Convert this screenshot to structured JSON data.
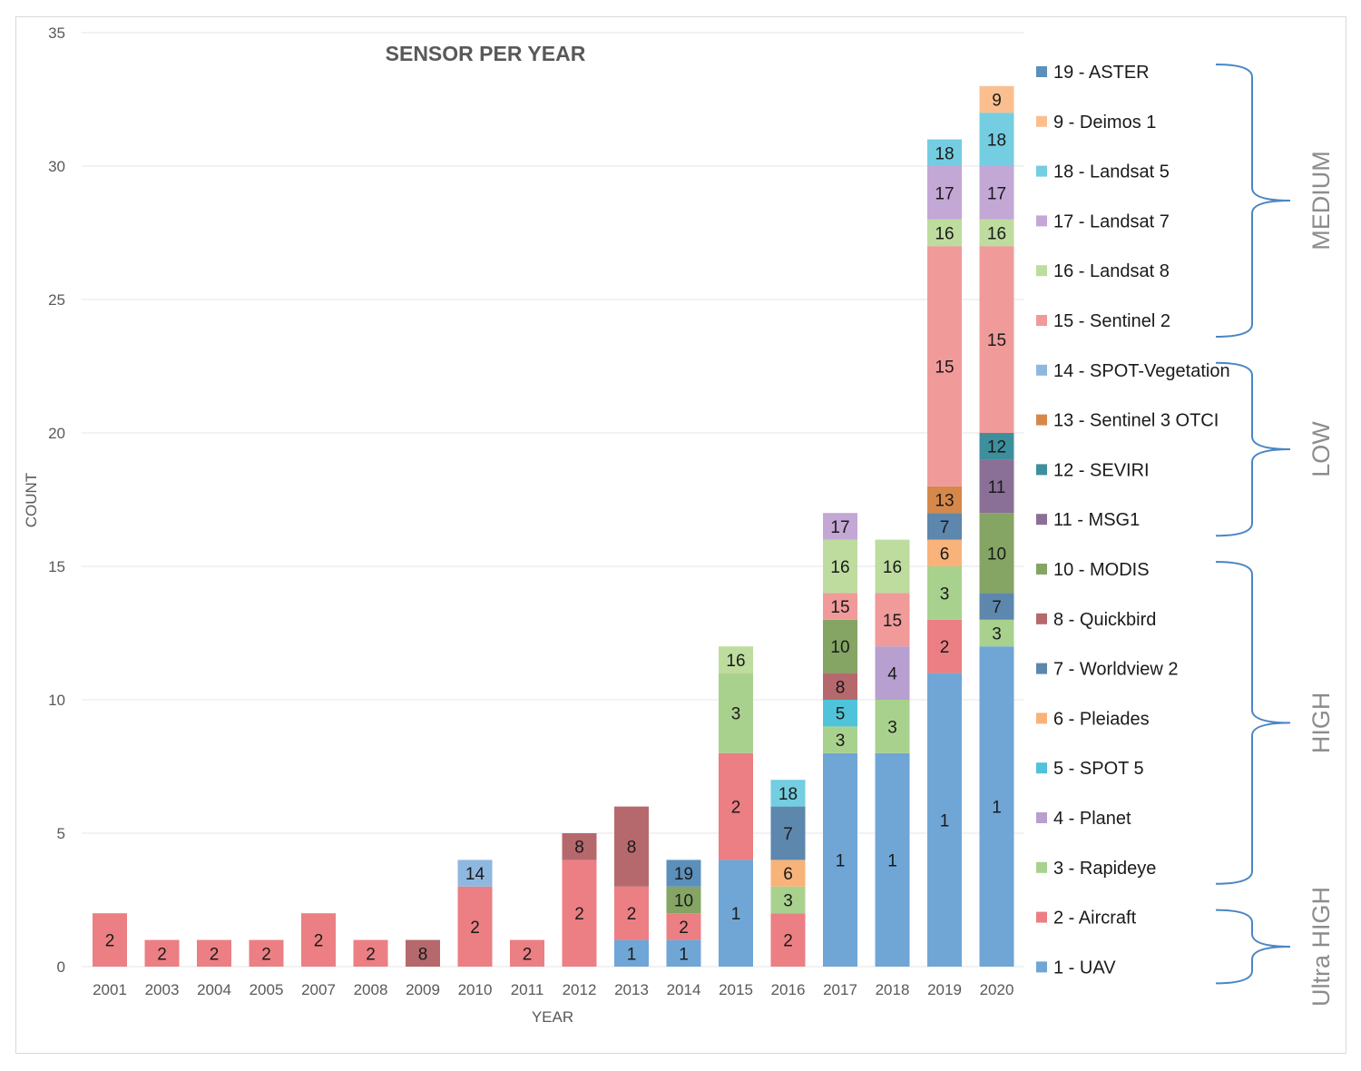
{
  "chart_data": {
    "type": "bar",
    "stacked": true,
    "title": "SENSOR PER YEAR",
    "xlabel": "YEAR",
    "ylabel": "COUNT",
    "ylim": [
      0,
      35
    ],
    "yticks": [
      0,
      5,
      10,
      15,
      20,
      25,
      30,
      35
    ],
    "grid": true,
    "legend_position": "right",
    "categories": [
      "2001",
      "2003",
      "2004",
      "2005",
      "2007",
      "2008",
      "2009",
      "2010",
      "2011",
      "2012",
      "2013",
      "2014",
      "2015",
      "2016",
      "2017",
      "2018",
      "2019",
      "2020"
    ],
    "sensors": [
      {
        "id": "1",
        "name": "1 - UAV",
        "color": "#6fa6d6"
      },
      {
        "id": "2",
        "name": "2 - Aircraft",
        "color": "#eb7f83"
      },
      {
        "id": "3",
        "name": "3 - Rapideye",
        "color": "#a9d18e"
      },
      {
        "id": "4",
        "name": "4 - Planet",
        "color": "#b79fd0"
      },
      {
        "id": "5",
        "name": "5 - SPOT 5",
        "color": "#4fc3d9"
      },
      {
        "id": "6",
        "name": "6 - Pleiades",
        "color": "#f8b37a"
      },
      {
        "id": "7",
        "name": "7 - Worldview 2",
        "color": "#5d87ad"
      },
      {
        "id": "8",
        "name": "8 - Quickbird",
        "color": "#b5696d"
      },
      {
        "id": "10",
        "name": "10 - MODIS",
        "color": "#84a563"
      },
      {
        "id": "11",
        "name": "11 - MSG1",
        "color": "#8a6f96"
      },
      {
        "id": "12",
        "name": "12 - SEVIRI",
        "color": "#3e8f9c"
      },
      {
        "id": "13",
        "name": "13 - Sentinel 3 OTCI",
        "color": "#d5884a"
      },
      {
        "id": "14",
        "name": "14 - SPOT-Vegetation",
        "color": "#8fb8e0"
      },
      {
        "id": "15",
        "name": "15 - Sentinel 2",
        "color": "#f09a9a"
      },
      {
        "id": "16",
        "name": "16 - Landsat 8",
        "color": "#bddc9e"
      },
      {
        "id": "17",
        "name": "17 - Landsat 7",
        "color": "#c3a7d5"
      },
      {
        "id": "18",
        "name": "18 - Landsat 5",
        "color": "#74cde0"
      },
      {
        "id": "9",
        "name": "9 - Deimos 1",
        "color": "#fbbf8f"
      },
      {
        "id": "19",
        "name": "19 - ASTER",
        "color": "#5b8fbc"
      }
    ],
    "stacks": [
      {
        "year": "2001",
        "segments": [
          {
            "sensor": "2",
            "value": 2
          }
        ]
      },
      {
        "year": "2003",
        "segments": [
          {
            "sensor": "2",
            "value": 1
          }
        ]
      },
      {
        "year": "2004",
        "segments": [
          {
            "sensor": "2",
            "value": 1
          }
        ]
      },
      {
        "year": "2005",
        "segments": [
          {
            "sensor": "2",
            "value": 1
          }
        ]
      },
      {
        "year": "2007",
        "segments": [
          {
            "sensor": "2",
            "value": 2
          }
        ]
      },
      {
        "year": "2008",
        "segments": [
          {
            "sensor": "2",
            "value": 1
          }
        ]
      },
      {
        "year": "2009",
        "segments": [
          {
            "sensor": "8",
            "value": 1
          }
        ]
      },
      {
        "year": "2010",
        "segments": [
          {
            "sensor": "2",
            "value": 3
          },
          {
            "sensor": "14",
            "value": 1
          }
        ]
      },
      {
        "year": "2011",
        "segments": [
          {
            "sensor": "2",
            "value": 1
          }
        ]
      },
      {
        "year": "2012",
        "segments": [
          {
            "sensor": "2",
            "value": 4
          },
          {
            "sensor": "8",
            "value": 1
          }
        ]
      },
      {
        "year": "2013",
        "segments": [
          {
            "sensor": "1",
            "value": 1
          },
          {
            "sensor": "2",
            "value": 2
          },
          {
            "sensor": "8",
            "value": 3
          }
        ]
      },
      {
        "year": "2014",
        "segments": [
          {
            "sensor": "1",
            "value": 1
          },
          {
            "sensor": "2",
            "value": 1
          },
          {
            "sensor": "10",
            "value": 1
          },
          {
            "sensor": "19",
            "value": 1
          }
        ]
      },
      {
        "year": "2015",
        "segments": [
          {
            "sensor": "1",
            "value": 4
          },
          {
            "sensor": "2",
            "value": 4
          },
          {
            "sensor": "3",
            "value": 3
          },
          {
            "sensor": "16",
            "value": 1
          }
        ]
      },
      {
        "year": "2016",
        "segments": [
          {
            "sensor": "2",
            "value": 2
          },
          {
            "sensor": "3",
            "value": 1
          },
          {
            "sensor": "6",
            "value": 1
          },
          {
            "sensor": "7",
            "value": 2
          },
          {
            "sensor": "18",
            "value": 1
          }
        ]
      },
      {
        "year": "2017",
        "segments": [
          {
            "sensor": "1",
            "value": 8
          },
          {
            "sensor": "3",
            "value": 1
          },
          {
            "sensor": "5",
            "value": 1
          },
          {
            "sensor": "8",
            "value": 1
          },
          {
            "sensor": "10",
            "value": 2
          },
          {
            "sensor": "15",
            "value": 1
          },
          {
            "sensor": "16",
            "value": 2
          },
          {
            "sensor": "17",
            "value": 1
          }
        ]
      },
      {
        "year": "2018",
        "segments": [
          {
            "sensor": "1",
            "value": 8
          },
          {
            "sensor": "3",
            "value": 2
          },
          {
            "sensor": "4",
            "value": 2
          },
          {
            "sensor": "15",
            "value": 2
          },
          {
            "sensor": "16",
            "value": 2
          }
        ]
      },
      {
        "year": "2019",
        "segments": [
          {
            "sensor": "1",
            "value": 11
          },
          {
            "sensor": "2",
            "value": 2
          },
          {
            "sensor": "3",
            "value": 2
          },
          {
            "sensor": "6",
            "value": 1
          },
          {
            "sensor": "7",
            "value": 1
          },
          {
            "sensor": "13",
            "value": 1
          },
          {
            "sensor": "15",
            "value": 9
          },
          {
            "sensor": "16",
            "value": 1
          },
          {
            "sensor": "17",
            "value": 2
          },
          {
            "sensor": "18",
            "value": 1
          }
        ]
      },
      {
        "year": "2020",
        "segments": [
          {
            "sensor": "1",
            "value": 12
          },
          {
            "sensor": "3",
            "value": 1
          },
          {
            "sensor": "7",
            "value": 1
          },
          {
            "sensor": "10",
            "value": 3
          },
          {
            "sensor": "11",
            "value": 2
          },
          {
            "sensor": "12",
            "value": 1
          },
          {
            "sensor": "15",
            "value": 7
          },
          {
            "sensor": "16",
            "value": 1
          },
          {
            "sensor": "17",
            "value": 2
          },
          {
            "sensor": "18",
            "value": 2
          },
          {
            "sensor": "9",
            "value": 1
          }
        ]
      }
    ],
    "legend_order": [
      "19",
      "9",
      "18",
      "17",
      "16",
      "15",
      "14",
      "13",
      "12",
      "11",
      "10",
      "8",
      "7",
      "6",
      "5",
      "4",
      "3",
      "2",
      "1"
    ],
    "resolution_groups": [
      {
        "label": "MEDIUM",
        "from": "19",
        "to": "15"
      },
      {
        "label": "LOW",
        "from": "14",
        "to": "11"
      },
      {
        "label": "HIGH",
        "from": "10",
        "to": "3"
      },
      {
        "label": "Ultra HIGH",
        "from": "2",
        "to": "1"
      }
    ]
  }
}
